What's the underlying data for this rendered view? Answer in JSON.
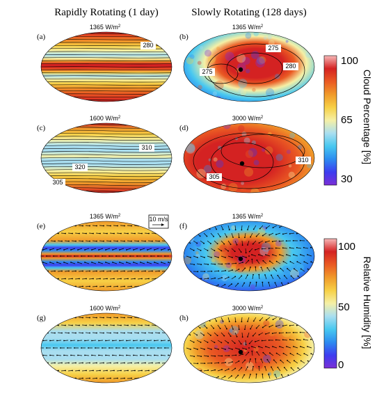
{
  "column_titles": [
    "Rapidly Rotating (1 day)",
    "Slowly Rotating (128 days)"
  ],
  "colors": {
    "cloud_ramp": [
      "#7b2fd6",
      "#3d3df0",
      "#2d8cf0",
      "#48c8f0",
      "#a9def0",
      "#f5f0a6",
      "#f7d046",
      "#f09a2a",
      "#ea5a23",
      "#d42222",
      "#f7b8b8"
    ],
    "humidity_ramp": [
      "#7b2fd6",
      "#3d3df0",
      "#2d8cf0",
      "#48c8f0",
      "#a9def0",
      "#f5f0a6",
      "#f7d046",
      "#f09a2a",
      "#ea5a23",
      "#d42222",
      "#f7b8b8"
    ]
  },
  "panels": [
    {
      "letter": "(a)",
      "flux": "1365",
      "unit": "W/m",
      "contour_labels": [
        "280"
      ]
    },
    {
      "letter": "(b)",
      "flux": "1365",
      "unit": "W/m",
      "contour_labels": [
        "275",
        "275",
        "280"
      ]
    },
    {
      "letter": "(c)",
      "flux": "1600",
      "unit": "W/m",
      "contour_labels": [
        "310",
        "320",
        "305"
      ]
    },
    {
      "letter": "(d)",
      "flux": "3000",
      "unit": "W/m",
      "contour_labels": [
        "310",
        "305"
      ]
    },
    {
      "letter": "(e)",
      "flux": "1365",
      "unit": "W/m",
      "contour_labels": []
    },
    {
      "letter": "(f)",
      "flux": "1365",
      "unit": "W/m",
      "contour_labels": []
    },
    {
      "letter": "(g)",
      "flux": "1600",
      "unit": "W/m",
      "contour_labels": []
    },
    {
      "letter": "(h)",
      "flux": "3000",
      "unit": "W/m",
      "contour_labels": []
    }
  ],
  "wind_reference": "10 m/s",
  "chart_data": [
    {
      "type": "heatmap",
      "title": "Cloud Percentage [%]",
      "colorbar_label": "Cloud Percentage [%]",
      "colorbar_ticks": [
        100,
        65,
        30
      ],
      "range": [
        30,
        100
      ],
      "panels": [
        "(a)",
        "(b)",
        "(c)",
        "(d)"
      ],
      "contour_labels": {
        "(a)": [
          280
        ],
        "(b)": [
          275,
          275,
          280
        ],
        "(c)": [
          310,
          320,
          305
        ],
        "(d)": [
          310,
          305
        ]
      }
    },
    {
      "type": "heatmap",
      "title": "Relative Humidity [%]",
      "colorbar_label": "Relative Humidity [%]",
      "colorbar_ticks": [
        100,
        50,
        0
      ],
      "range": [
        0,
        100
      ],
      "panels": [
        "(e)",
        "(f)",
        "(g)",
        "(h)"
      ],
      "vector_reference": "10 m/s"
    }
  ]
}
